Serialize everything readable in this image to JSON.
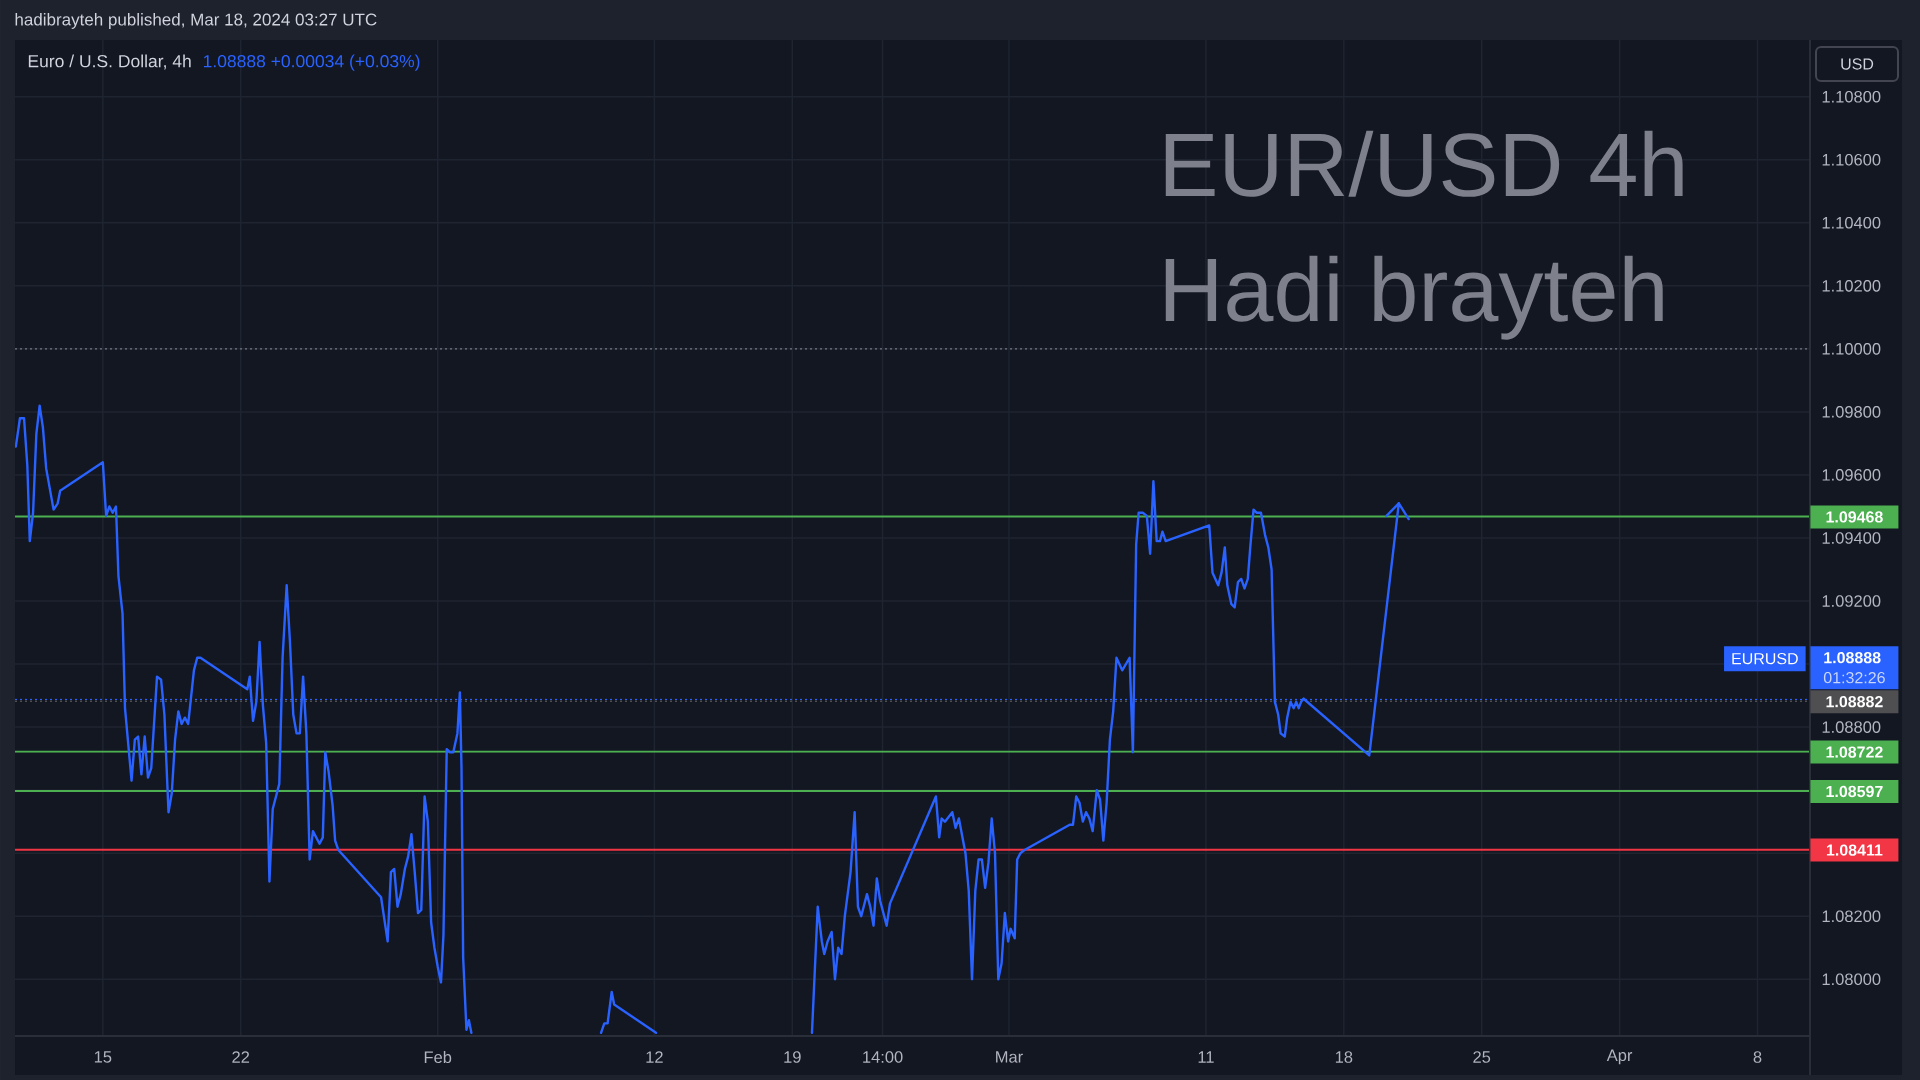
{
  "chart_data": {
    "type": "line",
    "title": "Euro / U.S. Dollar, 4h",
    "subtitle": "1.08888 +0.00034 (+0.03%)",
    "ylabel": "USD",
    "annotations": [
      "hadibrayteh published, Mar 18, 2024 03:27 UTC",
      "EUR/USD 4h",
      "Hadi brayteh",
      "01:32:26"
    ],
    "xlim": [
      "2024-01-10T13:00",
      "2024-04-10T16:00"
    ],
    "xticks": [
      {
        "value": "2024-01-15",
        "label": "15"
      },
      {
        "value": "2024-01-22",
        "label": "22"
      },
      {
        "value": "2024-02-01",
        "label": "Feb"
      },
      {
        "value": "2024-02-12",
        "label": "12"
      },
      {
        "value": "2024-02-19",
        "label": "19"
      },
      {
        "value": "2024-02-23T14:00",
        "label": "14:00"
      },
      {
        "value": "2024-03-01",
        "label": "Mar"
      },
      {
        "value": "2024-03-11",
        "label": "11"
      },
      {
        "value": "2024-03-18",
        "label": "18"
      },
      {
        "value": "2024-03-25",
        "label": "25"
      },
      {
        "value": "2024-04-01",
        "label": "Apr"
      },
      {
        "value": "2024-04-08",
        "label": "8"
      }
    ],
    "ylim": [
      1.0782,
      1.1098
    ],
    "yticks": [
      {
        "value": 1.08,
        "label": "1.08000"
      },
      {
        "value": 1.082,
        "label": "1.08200"
      },
      {
        "value": 1.084,
        "label": null
      },
      {
        "value": 1.086,
        "label": null
      },
      {
        "value": 1.088,
        "label": "1.08800"
      },
      {
        "value": 1.09,
        "label": null
      },
      {
        "value": 1.092,
        "label": "1.09200"
      },
      {
        "value": 1.094,
        "label": "1.09400"
      },
      {
        "value": 1.096,
        "label": "1.09600"
      },
      {
        "value": 1.098,
        "label": "1.09800"
      },
      {
        "value": 1.1,
        "label": "1.10000"
      },
      {
        "value": 1.102,
        "label": "1.10200"
      },
      {
        "value": 1.104,
        "label": "1.10400"
      },
      {
        "value": 1.106,
        "label": "1.10600"
      },
      {
        "value": 1.108,
        "label": "1.10800"
      }
    ],
    "grid": true,
    "series": [
      {
        "name": "EURUSD",
        "color": "#2962ff",
        "x": [
          "2024-01-10T14:00",
          "2024-01-10T19:00",
          "2024-01-11T00:00",
          "2024-01-11T04:00",
          "2024-01-11T07:00",
          "2024-01-11T11:00",
          "2024-01-11T15:00",
          "2024-01-11T19:00",
          "2024-01-11T23:00",
          "2024-01-12T03:00",
          "2024-01-12T12:00",
          "2024-01-12T17:00",
          "2024-01-12T20:00",
          "2024-01-15T00:00",
          "2024-01-15T04:00",
          "2024-01-15T08:00",
          "2024-01-15T12:00",
          "2024-01-15T16:00",
          "2024-01-15T19:00",
          "2024-01-16T00:00",
          "2024-01-16T03:00",
          "2024-01-16T11:00",
          "2024-01-16T15:00",
          "2024-01-16T19:00",
          "2024-01-16T23:00",
          "2024-01-17T03:00",
          "2024-01-17T07:00",
          "2024-01-17T11:00",
          "2024-01-17T18:00",
          "2024-01-17T23:00",
          "2024-01-18T03:00",
          "2024-01-18T08:00",
          "2024-01-18T12:00",
          "2024-01-18T16:00",
          "2024-01-18T20:00",
          "2024-01-19T00:00",
          "2024-01-19T04:00",
          "2024-01-19T08:00",
          "2024-01-19T15:00",
          "2024-01-19T19:00",
          "2024-01-19T23:00",
          "2024-01-22T08:00",
          "2024-01-22T11:00",
          "2024-01-22T15:00",
          "2024-01-22T19:00",
          "2024-01-22T23:00",
          "2024-01-23T03:00",
          "2024-01-23T07:00",
          "2024-01-23T11:00",
          "2024-01-23T15:00",
          "2024-01-23T23:00",
          "2024-01-24T03:00",
          "2024-01-24T08:00",
          "2024-01-24T12:00",
          "2024-01-24T16:00",
          "2024-01-24T20:00",
          "2024-01-25T00:00",
          "2024-01-25T04:00",
          "2024-01-25T08:00",
          "2024-01-25T12:00",
          "2024-01-25T16:00",
          "2024-01-26T00:00",
          "2024-01-26T04:00",
          "2024-01-26T07:00",
          "2024-01-26T11:00",
          "2024-01-26T16:00",
          "2024-01-26T19:00",
          "2024-01-26T23:00",
          "2024-01-29T03:00",
          "2024-01-29T11:00",
          "2024-01-29T15:00",
          "2024-01-29T19:00",
          "2024-01-29T23:00",
          "2024-01-30T03:00",
          "2024-01-30T08:00",
          "2024-01-30T12:00",
          "2024-01-30T16:00",
          "2024-01-30T20:00",
          "2024-01-31T00:00",
          "2024-01-31T04:00",
          "2024-01-31T08:00",
          "2024-01-31T12:00",
          "2024-01-31T16:00",
          "2024-01-31T20:00",
          "2024-02-01T00:00",
          "2024-02-01T04:00",
          "2024-02-01T07:00",
          "2024-02-01T11:00",
          "2024-02-01T15:00",
          "2024-02-01T19:00",
          "2024-02-02T00:00",
          "2024-02-02T03:00",
          "2024-02-02T05:00",
          "2024-02-02T07:00",
          "2024-02-02T11:00",
          "2024-02-02T14:00",
          "2024-02-02T17:00",
          "2024-02-06T00:00",
          "2024-02-09T07:00",
          "2024-02-09T11:00",
          "2024-02-09T15:00",
          "2024-02-09T20:00",
          "2024-02-09T23:00",
          "2024-02-12T02:00",
          "2024-02-15T00:00",
          "2024-02-20T00:00",
          "2024-02-20T07:00",
          "2024-02-20T12:00",
          "2024-02-20T15:00",
          "2024-02-20T19:00",
          "2024-02-21T00:00",
          "2024-02-21T04:00",
          "2024-02-21T08:00",
          "2024-02-21T12:00",
          "2024-02-21T16:00",
          "2024-02-21T23:00",
          "2024-02-22T04:00",
          "2024-02-22T08:00",
          "2024-02-22T12:00",
          "2024-02-22T19:00",
          "2024-02-22T23:00",
          "2024-02-23T03:00",
          "2024-02-23T07:00",
          "2024-02-23T11:00",
          "2024-02-23T19:00",
          "2024-02-23T23:00",
          "2024-02-26T07:00",
          "2024-02-26T11:00",
          "2024-02-26T14:00",
          "2024-02-26T18:00",
          "2024-02-27T03:00",
          "2024-02-27T07:00",
          "2024-02-27T11:00",
          "2024-02-27T19:00",
          "2024-02-27T23:00",
          "2024-02-28T03:00",
          "2024-02-28T07:00",
          "2024-02-28T11:00",
          "2024-02-28T15:00",
          "2024-02-28T19:00",
          "2024-02-28T23:00",
          "2024-02-29T03:00",
          "2024-02-29T07:00",
          "2024-02-29T11:00",
          "2024-02-29T15:00",
          "2024-02-29T19:00",
          "2024-02-29T23:00",
          "2024-03-01T02:00",
          "2024-03-01T07:00",
          "2024-03-01T10:00",
          "2024-03-01T14:00",
          "2024-03-01T19:00",
          "2024-03-04T02:00",
          "2024-03-04T06:00",
          "2024-03-04T10:00",
          "2024-03-04T14:00",
          "2024-03-04T18:00",
          "2024-03-04T22:00",
          "2024-03-05T02:00",
          "2024-03-05T06:00",
          "2024-03-05T11:00",
          "2024-03-05T15:00",
          "2024-03-05T19:00",
          "2024-03-05T23:00",
          "2024-03-06T03:00",
          "2024-03-06T07:00",
          "2024-03-06T11:00",
          "2024-03-06T18:00",
          "2024-03-07T03:00",
          "2024-03-07T07:00",
          "2024-03-07T11:00",
          "2024-03-07T14:00",
          "2024-03-07T19:00",
          "2024-03-08T00:00",
          "2024-03-08T04:00",
          "2024-03-08T08:00",
          "2024-03-08T12:00",
          "2024-03-08T16:00",
          "2024-03-08T19:00",
          "2024-03-08T23:00",
          "2024-03-11T04:00",
          "2024-03-11T08:00",
          "2024-03-11T15:00",
          "2024-03-11T19:00",
          "2024-03-11T23:00",
          "2024-03-12T02:00",
          "2024-03-12T07:00",
          "2024-03-12T11:00",
          "2024-03-12T15:00",
          "2024-03-12T19:00",
          "2024-03-12T23:00",
          "2024-03-13T03:00",
          "2024-03-13T06:00",
          "2024-03-13T10:00",
          "2024-03-13T14:00",
          "2024-03-13T19:00",
          "2024-03-14T00:00",
          "2024-03-14T04:00",
          "2024-03-14T08:00",
          "2024-03-14T12:00",
          "2024-03-14T16:00",
          "2024-03-14T19:00",
          "2024-03-15T00:00",
          "2024-03-15T03:00",
          "2024-03-15T07:00",
          "2024-03-15T11:00",
          "2024-03-15T14:00",
          "2024-03-15T17:00",
          "2024-03-15T20:00",
          "2024-03-15T23:00"
        ],
        "values": [
          1.0969,
          1.0978,
          1.0978,
          1.0963,
          1.0939,
          1.0948,
          1.0973,
          1.0982,
          1.0975,
          1.0962,
          1.0949,
          1.0951,
          1.0955,
          1.0964,
          1.0947,
          1.095,
          1.0948,
          1.095,
          1.0928,
          1.0916,
          1.0886,
          1.0863,
          1.0876,
          1.0877,
          1.0865,
          1.0877,
          1.0864,
          1.0867,
          1.0896,
          1.0895,
          1.0884,
          1.0853,
          1.0859,
          1.0876,
          1.0885,
          1.0881,
          1.0883,
          1.0881,
          1.0898,
          1.0902,
          1.0902,
          1.0892,
          1.0896,
          1.0882,
          1.0888,
          1.0907,
          1.0887,
          1.0875,
          1.0831,
          1.0854,
          1.0862,
          1.0902,
          1.0925,
          1.0907,
          1.0884,
          1.0878,
          1.0878,
          1.0896,
          1.0878,
          1.0838,
          1.0847,
          1.0843,
          1.0845,
          1.0872,
          1.0866,
          1.0855,
          1.0844,
          1.0841,
          1.0826,
          1.0812,
          1.0834,
          1.0835,
          1.0823,
          1.0827,
          1.0835,
          1.0839,
          1.0846,
          1.0834,
          1.0821,
          1.0822,
          1.0858,
          1.085,
          1.0818,
          1.081,
          1.0804,
          1.0799,
          1.0814,
          1.0873,
          1.0872,
          1.0872,
          1.0878,
          1.0891,
          1.0867,
          1.0807,
          1.0784,
          1.0787,
          1.0783,
          null,
          1.0783,
          1.0786,
          1.0786,
          1.0796,
          1.0792,
          1.0783,
          null,
          1.0783,
          1.0823,
          1.0812,
          1.0808,
          1.0812,
          1.0815,
          1.08,
          1.081,
          1.0808,
          1.082,
          1.0834,
          1.0853,
          1.0823,
          1.082,
          1.0827,
          1.0823,
          1.0817,
          1.0832,
          1.0825,
          1.0817,
          1.0824,
          1.0858,
          1.0845,
          1.0851,
          1.085,
          1.0853,
          1.0848,
          1.0851,
          1.084,
          1.0828,
          1.08,
          1.0828,
          1.0838,
          1.0838,
          1.0829,
          1.0837,
          1.0851,
          1.084,
          1.08,
          1.0805,
          1.0821,
          1.0812,
          1.0816,
          1.0813,
          1.0838,
          1.084,
          1.0841,
          1.0849,
          1.0849,
          1.0858,
          1.0856,
          1.085,
          1.0853,
          1.0851,
          1.0847,
          1.086,
          1.0857,
          1.0844,
          1.0856,
          1.0876,
          1.0885,
          1.0902,
          1.0898,
          1.0902,
          1.0872,
          1.0938,
          1.0948,
          1.0948,
          1.0947,
          1.0935,
          1.0958,
          1.0939,
          1.0939,
          1.0942,
          1.0939,
          1.0944,
          1.0929,
          1.0925,
          1.0929,
          1.0937,
          1.0925,
          1.0919,
          1.0918,
          1.0926,
          1.0927,
          1.0924,
          1.0927,
          1.0937,
          1.0949,
          1.0948,
          1.0948,
          1.0941,
          1.0937,
          1.093,
          1.0888,
          1.0884,
          1.0878,
          1.0877,
          1.0883,
          1.0888,
          1.0886,
          1.0888,
          1.0886,
          1.0888,
          1.0889
        ]
      },
      {
        "color": "#2962ff",
        "x": [
          "2024-03-15T23:00",
          "2024-03-19T07:00",
          "2024-03-20T19:00",
          "2024-03-21T07:00"
        ],
        "values": [
          1.0889,
          1.0871,
          1.0951,
          1.0946
        ]
      },
      {
        "color": "#2962ff",
        "x": [
          "2024-03-20T04:00",
          "2024-03-20T19:00"
        ],
        "values": [
          1.0947,
          1.0951
        ]
      }
    ],
    "ref_lines": [
      {
        "axis": "y",
        "value": 1.1,
        "color": "#787b86",
        "line_style": "dotted"
      },
      {
        "axis": "y",
        "value": 1.09468,
        "label": "1.09468",
        "color": "#4caf50"
      },
      {
        "axis": "y",
        "value": 1.08882,
        "label": "1.08882",
        "color": "#4f4f52",
        "line_style": "dotted"
      },
      {
        "axis": "y",
        "value": 1.08888,
        "label": "1.08888",
        "color": "#2962ff",
        "line_style": "dotted"
      },
      {
        "axis": "y",
        "value": 1.08722,
        "label": "1.08722",
        "color": "#4caf50"
      },
      {
        "axis": "y",
        "value": 1.08597,
        "label": "1.08597",
        "color": "#4caf50"
      },
      {
        "axis": "y",
        "value": 1.08411,
        "label": "1.08411",
        "color": "#f23645"
      }
    ]
  }
}
